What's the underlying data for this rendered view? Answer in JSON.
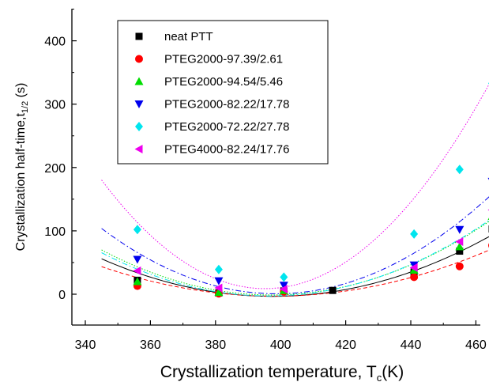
{
  "chart_data": {
    "type": "scatter",
    "xlabel_main": "Crystallization temperature, T",
    "xlabel_sub": "c",
    "xlabel_unit": "(K)",
    "ylabel_main": "Crystallization half-time,t",
    "ylabel_sub": "1/2",
    "ylabel_unit": " (s)",
    "xlim": [
      335,
      490
    ],
    "ylim": [
      -50,
      450
    ],
    "x_ticks": [
      340,
      360,
      380,
      400,
      420,
      440,
      460,
      480
    ],
    "y_ticks": [
      0,
      100,
      200,
      300,
      400
    ],
    "legend_position": "top-left",
    "fit_range": [
      345,
      476
    ],
    "series": [
      {
        "name": "neat PTT",
        "marker": "square",
        "color": "#000000",
        "line_style": "solid",
        "x": [
          356,
          381,
          401,
          416,
          441,
          455,
          465
        ],
        "y": [
          22,
          2,
          5,
          6,
          35,
          68,
          103
        ],
        "fit": [
          0.02137,
          -16.995,
          3375.6
        ]
      },
      {
        "name": "PTEG2000-97.39/2.61",
        "marker": "circle",
        "color": "#ff0000",
        "line_style": "dashed",
        "x": [
          356,
          381,
          401,
          441,
          455,
          465
        ],
        "y": [
          13,
          1,
          4,
          27,
          44,
          77
        ],
        "fit": [
          0.016627,
          -13.233,
          2629.9
        ]
      },
      {
        "name": "PTEG2000-94.54/5.46",
        "marker": "triangle-up",
        "color": "#00dd00",
        "line_style": "dotted",
        "x": [
          356,
          381,
          401,
          441,
          455,
          465
        ],
        "y": [
          20,
          3,
          6,
          38,
          75,
          123
        ],
        "fit": [
          0.026033,
          -20.684,
          4107.3
        ]
      },
      {
        "name": "PTEG2000-82.22/17.78",
        "marker": "triangle-down",
        "color": "#0000ee",
        "line_style": "dashdot",
        "x": [
          356,
          381,
          401,
          441,
          455,
          465
        ],
        "y": [
          55,
          21,
          14,
          46,
          102,
          178
        ],
        "fit": [
          0.035806,
          -28.548,
          5691.0
        ]
      },
      {
        "name": "PTEG2000-72.22/27.78",
        "marker": "diamond",
        "color": "#00e5ee",
        "line_style": "dashdot",
        "x": [
          356,
          381,
          401,
          441,
          455,
          465
        ],
        "y": [
          102,
          39,
          27,
          95,
          197,
          333
        ],
        "fit": [
          0.025966,
          -20.579,
          4074.7
        ]
      },
      {
        "name": "PTEG4000-82.24/17.76",
        "marker": "triangle-left",
        "color": "#ee00ee",
        "line_style": "dotted",
        "x": [
          356,
          381,
          401,
          441,
          455,
          465
        ],
        "y": [
          37,
          10,
          8,
          42,
          83,
          133
        ],
        "fit": [
          0.068055,
          -53.789,
          10637.2
        ]
      }
    ]
  }
}
